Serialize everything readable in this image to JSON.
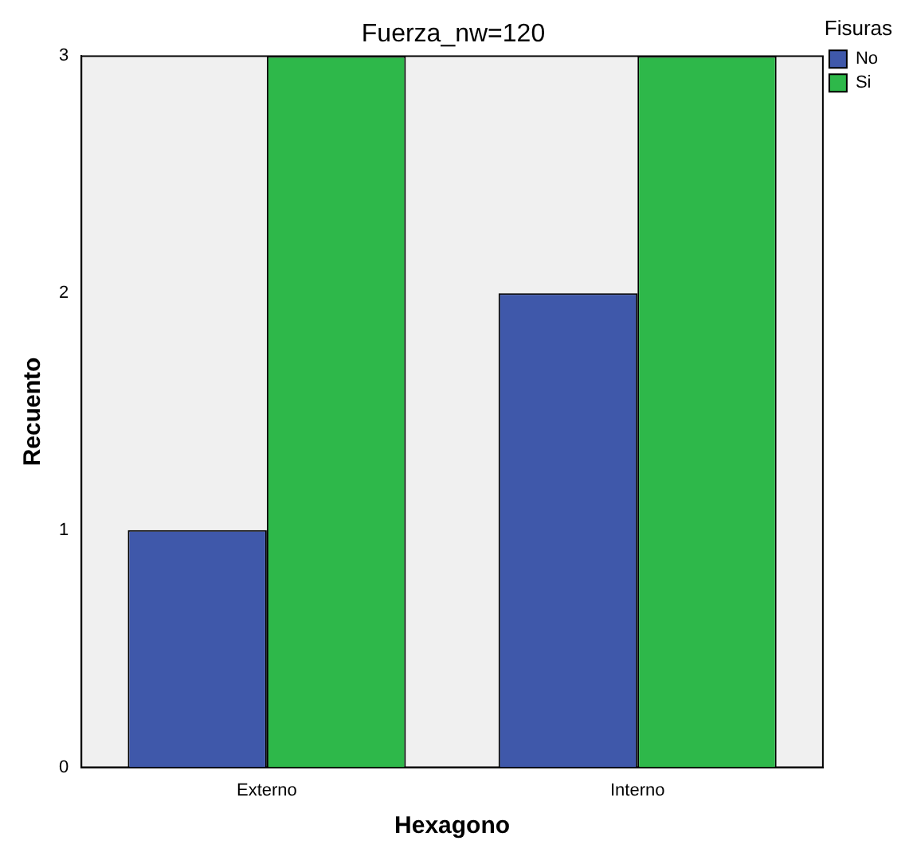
{
  "chart_data": {
    "type": "bar",
    "title": "Fuerza_nw=120",
    "xlabel": "Hexagono",
    "ylabel": "Recuento",
    "legend_title": "Fisuras",
    "legend": "right",
    "categories": [
      "Externo",
      "Interno"
    ],
    "series": [
      {
        "name": "No",
        "color": "#3f58aa",
        "values": [
          1,
          2
        ]
      },
      {
        "name": "Si",
        "color": "#2eb84a",
        "values": [
          3,
          3
        ]
      }
    ],
    "ylim": [
      0,
      3
    ],
    "yticks": [
      0,
      1,
      2,
      3
    ]
  }
}
